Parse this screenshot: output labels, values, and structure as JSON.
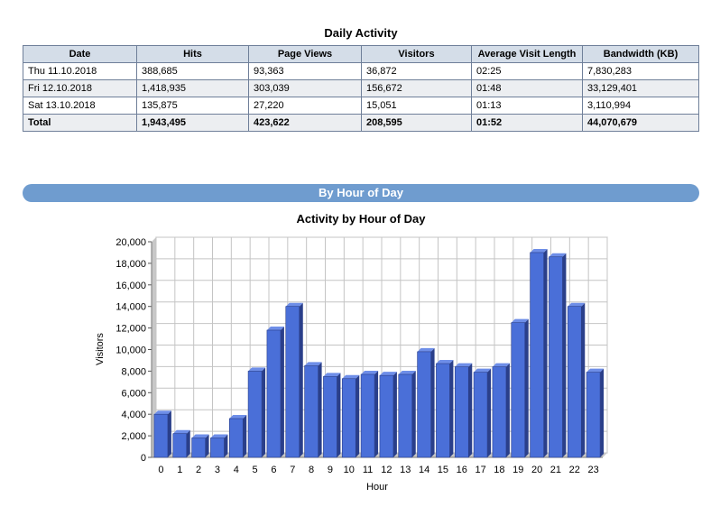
{
  "daily_activity": {
    "title": "Daily Activity",
    "columns": [
      "Date",
      "Hits",
      "Page Views",
      "Visitors",
      "Average Visit Length",
      "Bandwidth (KB)"
    ],
    "rows": [
      [
        "Thu 11.10.2018",
        "388,685",
        "93,363",
        "36,872",
        "02:25",
        "7,830,283"
      ],
      [
        "Fri 12.10.2018",
        "1,418,935",
        "303,039",
        "156,672",
        "01:48",
        "33,129,401"
      ],
      [
        "Sat 13.10.2018",
        "135,875",
        "27,220",
        "15,051",
        "01:13",
        "3,110,994"
      ]
    ],
    "total": [
      "Total",
      "1,943,495",
      "423,622",
      "208,595",
      "01:52",
      "44,070,679"
    ]
  },
  "section": {
    "title": "By Hour of Day"
  },
  "colors": {
    "bar_front": "#4a6fd8",
    "bar_side": "#2a3f8a",
    "bar_top": "#6e8ee8",
    "section_bar": "#6f9ccf"
  },
  "chart_data": {
    "type": "bar",
    "title": "Activity by Hour of Day",
    "xlabel": "Hour",
    "ylabel": "Visitors",
    "categories": [
      "0",
      "1",
      "2",
      "3",
      "4",
      "5",
      "6",
      "7",
      "8",
      "9",
      "10",
      "11",
      "12",
      "13",
      "14",
      "15",
      "16",
      "17",
      "18",
      "19",
      "20",
      "21",
      "22",
      "23"
    ],
    "values": [
      4000,
      2200,
      1800,
      1800,
      3600,
      8000,
      11800,
      14000,
      8500,
      7500,
      7300,
      7700,
      7600,
      7700,
      9800,
      8700,
      8400,
      7900,
      8400,
      12500,
      19000,
      18600,
      14000,
      7900
    ],
    "yticks": [
      "0",
      "2,000",
      "4,000",
      "6,000",
      "8,000",
      "10,000",
      "12,000",
      "14,000",
      "16,000",
      "18,000",
      "20,000"
    ],
    "ylim": [
      0,
      20000
    ],
    "grid": true,
    "legend": "none"
  }
}
